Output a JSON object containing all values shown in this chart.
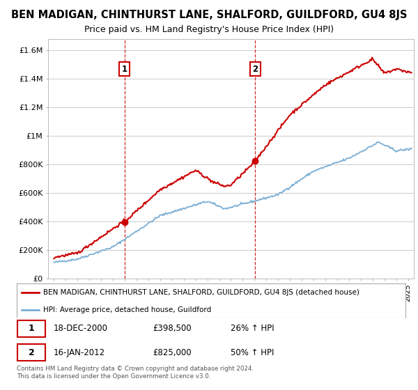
{
  "title": "BEN MADIGAN, CHINTHURST LANE, SHALFORD, GUILDFORD, GU4 8JS",
  "subtitle": "Price paid vs. HM Land Registry's House Price Index (HPI)",
  "ylabel_ticks": [
    "£0",
    "£200K",
    "£400K",
    "£600K",
    "£800K",
    "£1M",
    "£1.2M",
    "£1.4M",
    "£1.6M"
  ],
  "ytick_values": [
    0,
    200000,
    400000,
    600000,
    800000,
    1000000,
    1200000,
    1400000,
    1600000
  ],
  "ylim": [
    0,
    1680000
  ],
  "xlim_start": 1994.5,
  "xlim_end": 2025.5,
  "background_color": "#ffffff",
  "grid_color": "#cccccc",
  "red_color": "#cc0000",
  "blue_color": "#7aaed4",
  "purchase1_year": 2000.97,
  "purchase1_price": 398500,
  "purchase2_year": 2012.05,
  "purchase2_price": 825000,
  "legend_entry1": "BEN MADIGAN, CHINTHURST LANE, SHALFORD, GUILDFORD, GU4 8JS (detached house)",
  "legend_entry2": "HPI: Average price, detached house, Guildford",
  "table_row1": [
    "1",
    "18-DEC-2000",
    "£398,500",
    "26% ↑ HPI"
  ],
  "table_row2": [
    "2",
    "16-JAN-2012",
    "£825,000",
    "50% ↑ HPI"
  ],
  "footnote": "Contains HM Land Registry data © Crown copyright and database right 2024.\nThis data is licensed under the Open Government Licence v3.0.",
  "title_fontsize": 10.5,
  "subtitle_fontsize": 9
}
